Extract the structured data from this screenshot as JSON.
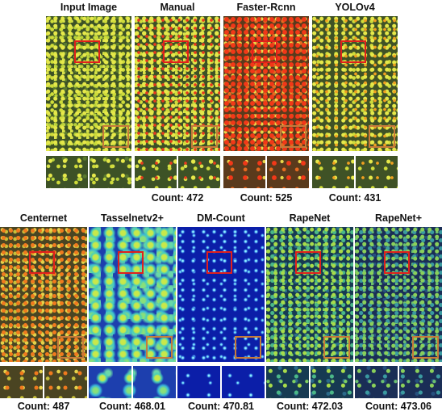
{
  "row1": [
    {
      "key": "input",
      "title": "Input Image",
      "count": "",
      "texture": "tex-field"
    },
    {
      "key": "manual",
      "title": "Manual",
      "count": "Count: 472",
      "texture": "tex-marked"
    },
    {
      "key": "faster",
      "title": "Faster-Rcnn",
      "count": "Count: 525",
      "texture": "tex-faster"
    },
    {
      "key": "yolo",
      "title": "YOLOv4",
      "count": "Count: 431",
      "texture": "tex-yolo"
    }
  ],
  "row2": [
    {
      "key": "centernet",
      "title": "Centernet",
      "count": "Count: 487",
      "texture": "tex-center"
    },
    {
      "key": "tasselnet",
      "title": "Tasselnetv2+",
      "count": "Count: 468.01",
      "texture": "tex-tassel"
    },
    {
      "key": "dmcount",
      "title": "DM-Count",
      "count": "Count: 470.81",
      "texture": "tex-dm"
    },
    {
      "key": "rapenet",
      "title": "RapeNet",
      "count": "Count: 472.03",
      "texture": "tex-rape"
    },
    {
      "key": "rapenetplus",
      "title": "RapeNet+",
      "count": "Count: 473.06",
      "texture": "tex-rapeplus"
    }
  ],
  "colors": {
    "red_box": "#e0201c",
    "orange_box": "#c77a3a"
  }
}
